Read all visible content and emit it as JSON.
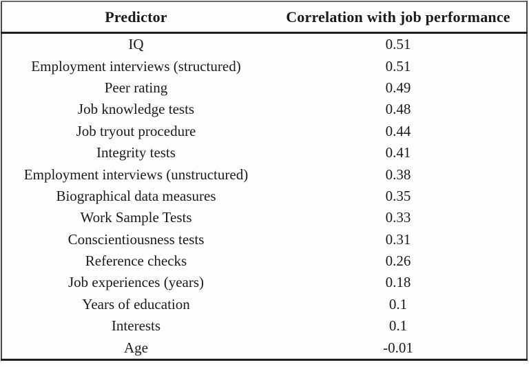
{
  "colors": {
    "background": "#fdfdfd",
    "text": "#1b1b1b",
    "border_light": "#6b6b6b",
    "border_side": "#474747",
    "border_heavy": "#1f1f1f"
  },
  "table": {
    "columns": [
      {
        "label": "Predictor"
      },
      {
        "label": "Correlation with job performance"
      }
    ],
    "rows": [
      {
        "predictor": "IQ",
        "correlation": "0.51"
      },
      {
        "predictor": "Employment interviews (structured)",
        "correlation": "0.51"
      },
      {
        "predictor": "Peer rating",
        "correlation": "0.49"
      },
      {
        "predictor": "Job knowledge tests",
        "correlation": "0.48"
      },
      {
        "predictor": "Job tryout procedure",
        "correlation": "0.44"
      },
      {
        "predictor": "Integrity tests",
        "correlation": "0.41"
      },
      {
        "predictor": "Employment interviews (unstructured)",
        "correlation": "0.38"
      },
      {
        "predictor": "Biographical data measures",
        "correlation": "0.35"
      },
      {
        "predictor": "Work Sample Tests",
        "correlation": "0.33"
      },
      {
        "predictor": "Conscientiousness tests",
        "correlation": "0.31"
      },
      {
        "predictor": "Reference checks",
        "correlation": "0.26"
      },
      {
        "predictor": "Job experiences (years)",
        "correlation": "0.18"
      },
      {
        "predictor": "Years of education",
        "correlation": "0.1"
      },
      {
        "predictor": "Interests",
        "correlation": "0.1"
      },
      {
        "predictor": "Age",
        "correlation": "-0.01"
      }
    ]
  },
  "chart_data": {
    "type": "table",
    "title": "",
    "categories": [
      "IQ",
      "Employment interviews (structured)",
      "Peer rating",
      "Job knowledge tests",
      "Job tryout procedure",
      "Integrity tests",
      "Employment interviews (unstructured)",
      "Biographical data measures",
      "Work Sample Tests",
      "Conscientiousness tests",
      "Reference checks",
      "Job experiences (years)",
      "Years of education",
      "Interests",
      "Age"
    ],
    "values": [
      0.51,
      0.51,
      0.49,
      0.48,
      0.44,
      0.41,
      0.38,
      0.35,
      0.33,
      0.31,
      0.26,
      0.18,
      0.1,
      0.1,
      -0.01
    ],
    "xlabel": "Predictor",
    "ylabel": "Correlation with job performance"
  }
}
